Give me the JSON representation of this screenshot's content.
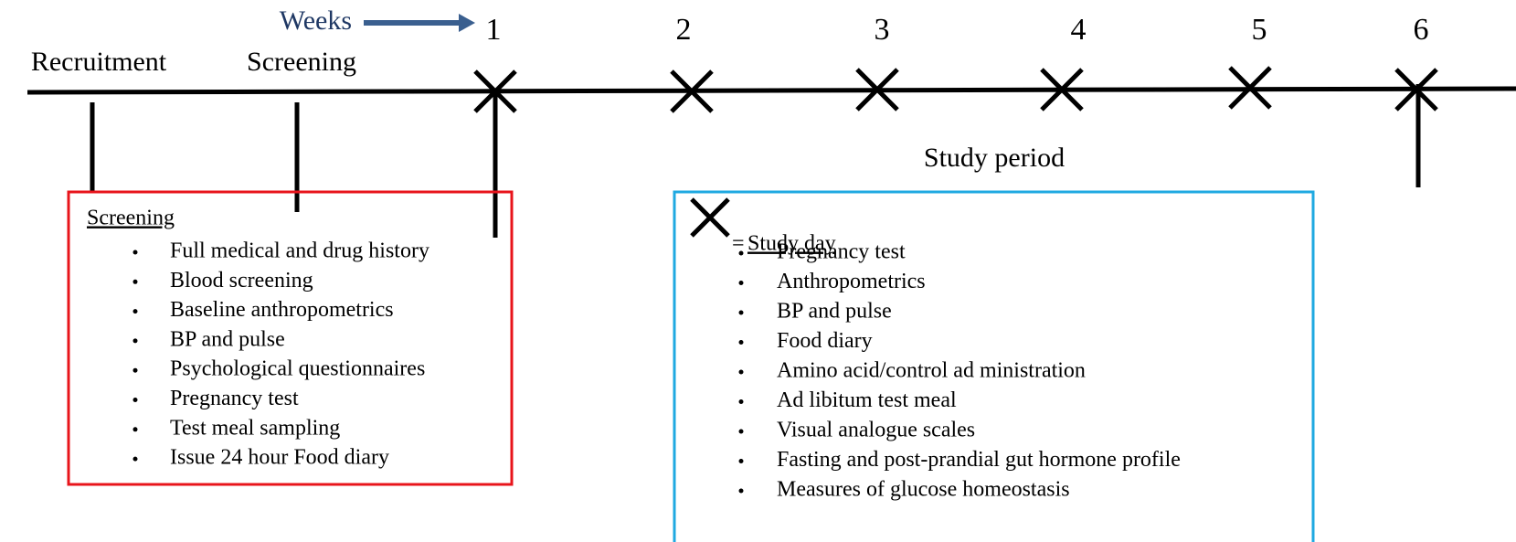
{
  "timeline": {
    "weeks_label": "Weeks",
    "weeks": [
      "1",
      "2",
      "3",
      "4",
      "5",
      "6"
    ],
    "phases": [
      "Recruitment",
      "Screening"
    ],
    "study_period": "Study period"
  },
  "screening_box": {
    "title": "Screening",
    "items": [
      "Full medical and drug history",
      "Blood screening",
      "Baseline anthropometrics",
      "BP and pulse",
      "Psychological questionnaires",
      "Pregnancy test",
      "Test meal sampling",
      "Issue 24 hour Food diary"
    ]
  },
  "study_box": {
    "legend_symbol": "=",
    "title": "Study day",
    "items": [
      "Pregnancy test",
      "Anthropometrics",
      "BP and pulse",
      "Food diary",
      "Amino acid/control ad ministration",
      "Ad libitum test meal",
      "Visual analogue scales",
      "Fasting and post-prandial gut hormone profile",
      "Measures of glucose homeostasis"
    ]
  }
}
